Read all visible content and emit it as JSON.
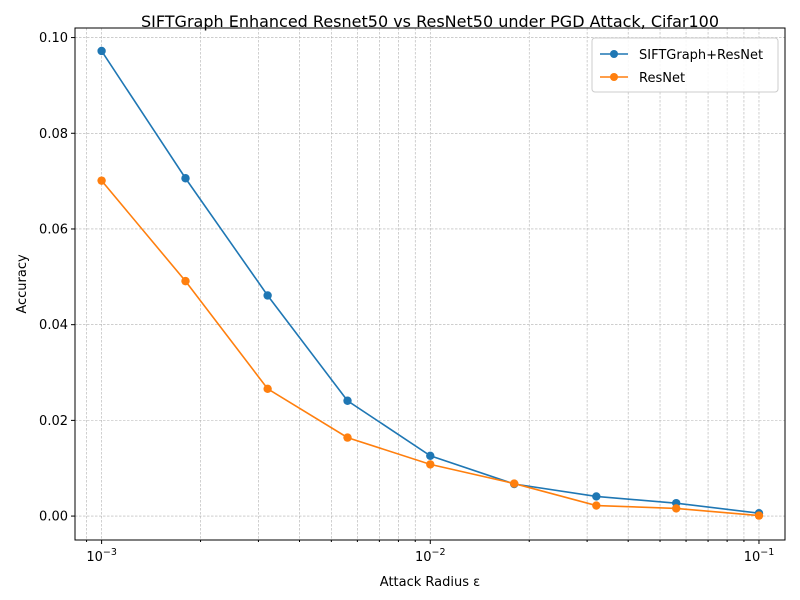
{
  "chart_data": {
    "type": "line",
    "title": "SIFTGraph Enhanced Resnet50 vs ResNet50 under PGD Attack, Cifar100",
    "xlabel": "Attack Radius ε",
    "ylabel": "Accuracy",
    "xscale": "log",
    "xlim": [
      0.00083,
      0.12
    ],
    "ylim": [
      -0.005,
      0.102
    ],
    "x": [
      0.001,
      0.0018,
      0.0032,
      0.0056,
      0.01,
      0.018,
      0.032,
      0.056,
      0.1
    ],
    "series": [
      {
        "name": "SIFTGraph+ResNet",
        "color": "#1f77b4",
        "values": [
          0.0972,
          0.0706,
          0.0461,
          0.0241,
          0.0126,
          0.0067,
          0.0041,
          0.0027,
          0.0006
        ]
      },
      {
        "name": "ResNet",
        "color": "#ff7f0e",
        "values": [
          0.0701,
          0.0491,
          0.0266,
          0.0164,
          0.0108,
          0.0068,
          0.0022,
          0.0016,
          0.0001
        ]
      }
    ],
    "yticks": [
      {
        "value": 0.0,
        "label": "0.00"
      },
      {
        "value": 0.02,
        "label": "0.02"
      },
      {
        "value": 0.04,
        "label": "0.04"
      },
      {
        "value": 0.06,
        "label": "0.06"
      },
      {
        "value": 0.08,
        "label": "0.08"
      },
      {
        "value": 0.1,
        "label": "0.10"
      }
    ],
    "xticks": [
      {
        "value": 0.001,
        "base": "10",
        "exp": "−3"
      },
      {
        "value": 0.01,
        "base": "10",
        "exp": "−2"
      },
      {
        "value": 0.1,
        "base": "10",
        "exp": "−1"
      }
    ],
    "grid": true,
    "legend_position": "top-right"
  }
}
